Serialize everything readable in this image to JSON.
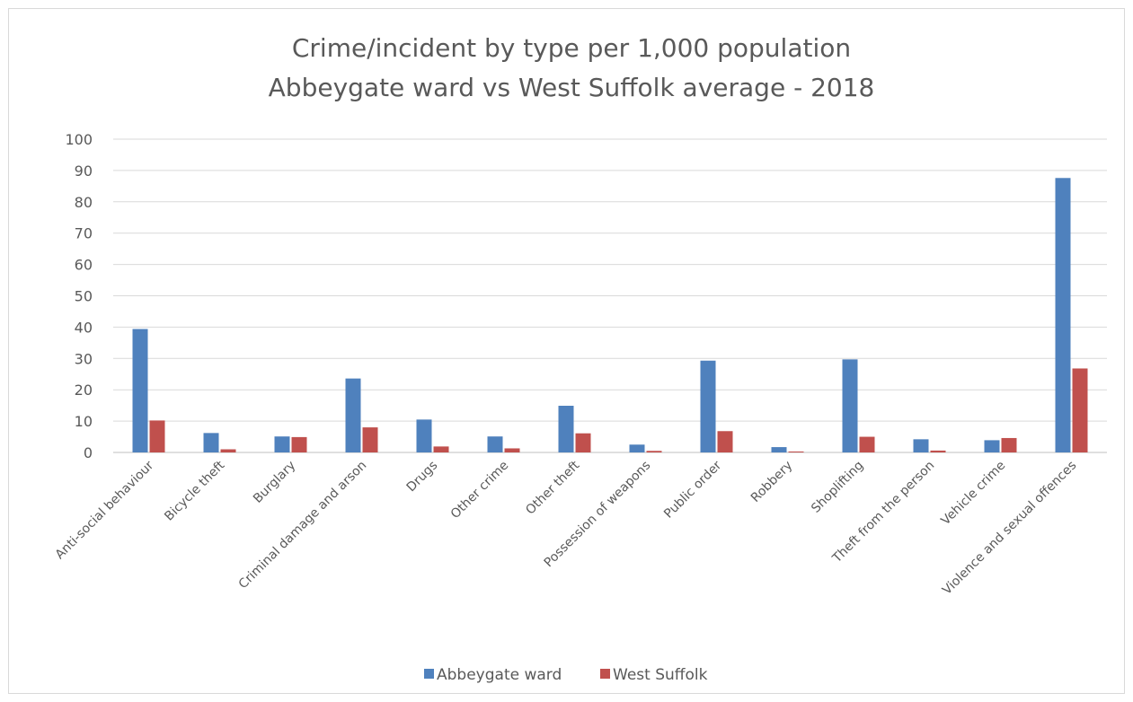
{
  "chart_data": {
    "type": "bar",
    "title": [
      "Crime/incident by type per 1,000 population",
      "Abbeygate ward vs West Suffolk average - 2018"
    ],
    "xlabel": "",
    "ylabel": "",
    "ylim": [
      0,
      100
    ],
    "yticks": [
      0,
      10,
      20,
      30,
      40,
      50,
      60,
      70,
      80,
      90,
      100
    ],
    "grid": true,
    "legend_position": "bottom",
    "categories": [
      "Anti-social behaviour",
      "Bicycle theft",
      "Burglary",
      "Criminal damage and arson",
      "Drugs",
      "Other crime",
      "Other theft",
      "Possession of weapons",
      "Public order",
      "Robbery",
      "Shoplifting",
      "Theft from the person",
      "Vehicle crime",
      "Violence and sexual offences"
    ],
    "series": [
      {
        "name": "Abbeygate ward",
        "color": "#4f81bd",
        "values": [
          39.4,
          6.2,
          5.1,
          23.6,
          10.5,
          5.1,
          14.9,
          2.5,
          29.3,
          1.7,
          29.7,
          4.2,
          3.9,
          87.6
        ]
      },
      {
        "name": "West Suffolk",
        "color": "#c0504d",
        "values": [
          10.2,
          1.0,
          4.9,
          8.0,
          1.9,
          1.3,
          6.1,
          0.5,
          6.8,
          0.3,
          5.0,
          0.6,
          4.6,
          26.8
        ]
      }
    ]
  }
}
